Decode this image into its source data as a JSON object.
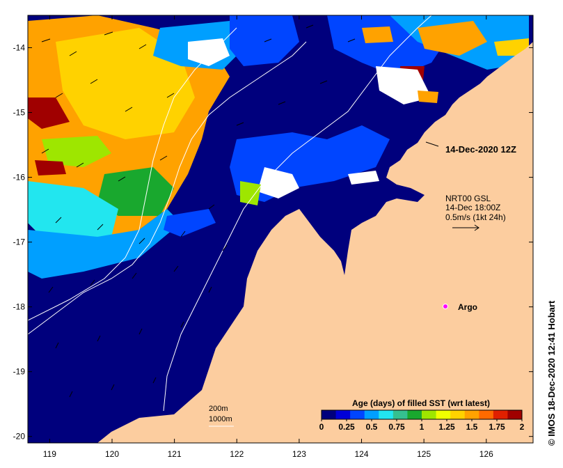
{
  "map": {
    "lon_ticks": [
      119,
      120,
      121,
      122,
      123,
      124,
      125,
      126
    ],
    "lat_ticks": [
      -14,
      -15,
      -16,
      -17,
      -18,
      -19,
      -20
    ],
    "lon_range": [
      118.65,
      126.75
    ],
    "lat_range": [
      -20.1,
      -13.5
    ],
    "land_color": "#fccd9f",
    "ocean_color": "#00007d"
  },
  "annotations": {
    "sst_time": "14-Dec-2020 12Z",
    "current_product": "NRT00 GSL",
    "current_time": "14-Dec 18:00Z",
    "current_scale": "0.5m/s (1kt 24h)",
    "argo_label": "Argo",
    "depth_200": "200m",
    "depth_1000": "1000m"
  },
  "colorbar": {
    "title": "Age (days) of filled SST (wrt latest)",
    "ticks": [
      "0",
      "0.25",
      "0.5",
      "0.75",
      "1",
      "1.25",
      "1.5",
      "1.75",
      "2"
    ],
    "colors": [
      "#00007d",
      "#0000d8",
      "#0045ff",
      "#009fff",
      "#22e6ef",
      "#35c090",
      "#19a82e",
      "#9ee600",
      "#f0ff00",
      "#ffd200",
      "#ffa200",
      "#ff6a00",
      "#e02000",
      "#a00000"
    ]
  },
  "credit": "© IMOS 18-Dec-2020 12:41 Hobart"
}
